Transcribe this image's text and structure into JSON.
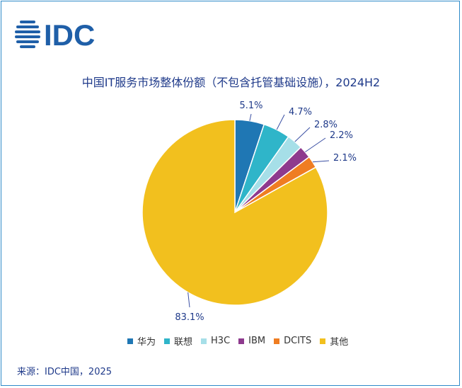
{
  "logo": {
    "text": "IDC",
    "color": "#1f5fa8"
  },
  "chart_data": {
    "type": "pie",
    "title": "中国IT服务市场整体份额（不包含托管基础设施），2024H2",
    "slices": [
      {
        "name": "华为",
        "value": 5.1,
        "label": "5.1%",
        "color": "#1f77b4"
      },
      {
        "name": "联想",
        "value": 4.7,
        "label": "4.7%",
        "color": "#2fb5c9"
      },
      {
        "name": "H3C",
        "value": 2.8,
        "label": "2.8%",
        "color": "#a6dfe8"
      },
      {
        "name": "IBM",
        "value": 2.2,
        "label": "2.2%",
        "color": "#8e3a8e"
      },
      {
        "name": "DCITS",
        "value": 2.1,
        "label": "2.1%",
        "color": "#ef7d22"
      },
      {
        "name": "其他",
        "value": 83.1,
        "label": "83.1%",
        "color": "#f2c01e"
      }
    ],
    "legend_position": "bottom",
    "start_angle_deg": 0,
    "direction": "clockwise"
  },
  "source": "来源：IDC中国，2025"
}
